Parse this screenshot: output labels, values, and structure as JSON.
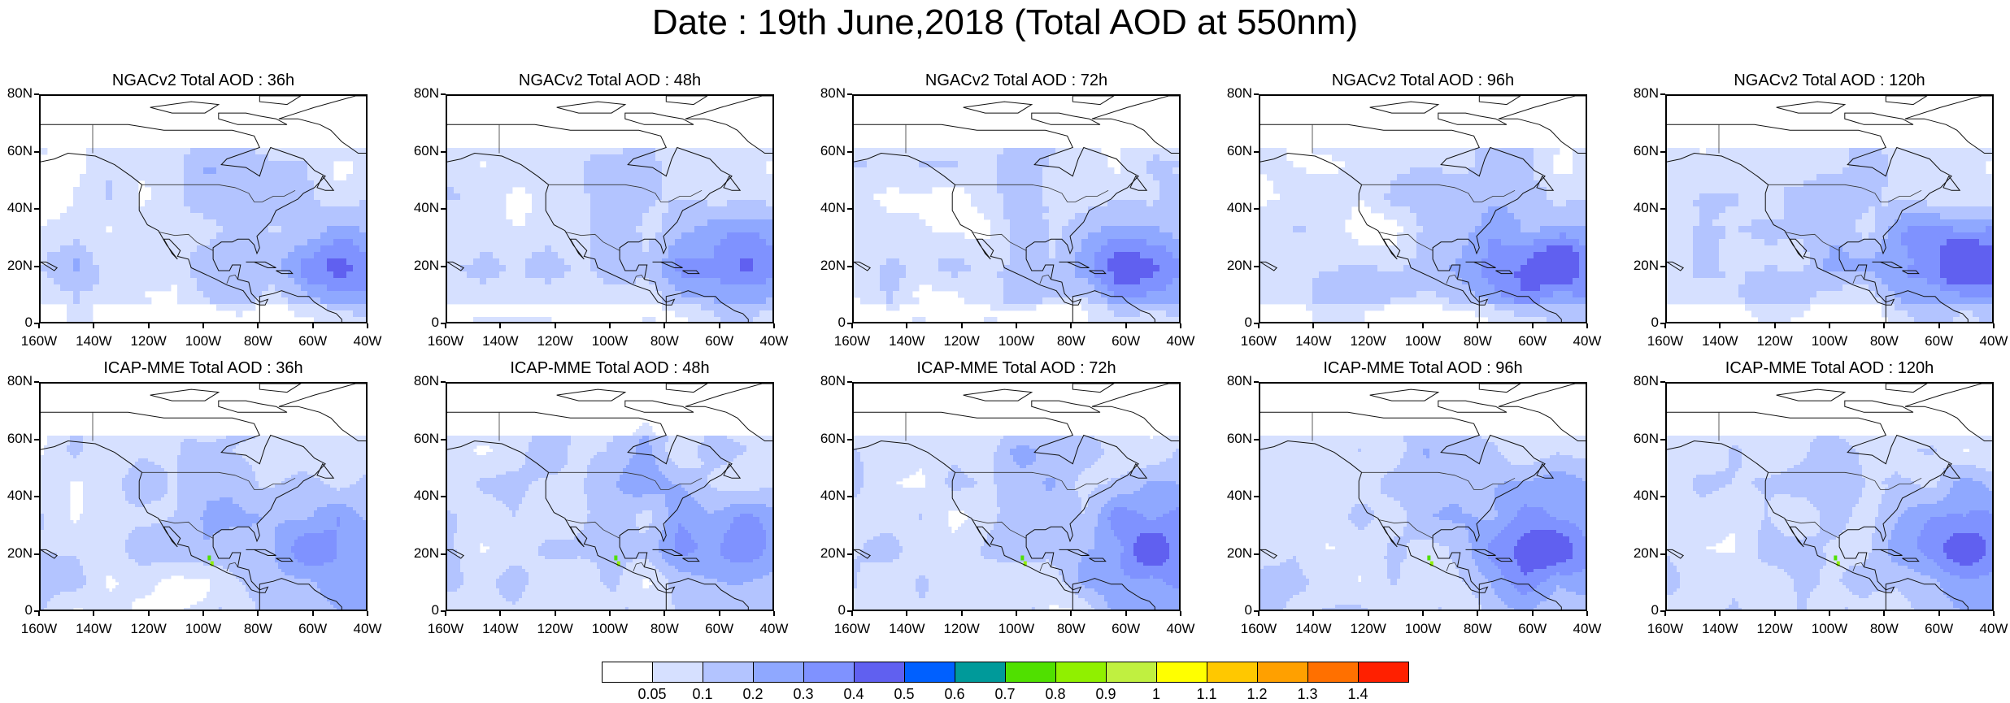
{
  "title": "Date : 19th June,2018 (Total AOD at 550nm)",
  "rows": [
    {
      "model": "NGACv2",
      "panels": [
        {
          "title": "NGACv2 Total AOD : 36h",
          "lead": "36h"
        },
        {
          "title": "NGACv2 Total AOD : 48h",
          "lead": "48h"
        },
        {
          "title": "NGACv2 Total AOD : 72h",
          "lead": "72h"
        },
        {
          "title": "NGACv2 Total AOD : 96h",
          "lead": "96h"
        },
        {
          "title": "NGACv2 Total AOD : 120h",
          "lead": "120h"
        }
      ]
    },
    {
      "model": "ICAP-MME",
      "panels": [
        {
          "title": "ICAP-MME Total AOD : 36h",
          "lead": "36h"
        },
        {
          "title": "ICAP-MME Total AOD : 48h",
          "lead": "48h"
        },
        {
          "title": "ICAP-MME Total AOD : 72h",
          "lead": "72h"
        },
        {
          "title": "ICAP-MME Total AOD : 96h",
          "lead": "96h"
        },
        {
          "title": "ICAP-MME Total AOD : 120h",
          "lead": "120h"
        }
      ]
    }
  ],
  "map_extent": {
    "lon": [
      -160,
      -40
    ],
    "lat": [
      0,
      80
    ]
  },
  "x_ticks": [
    "160W",
    "140W",
    "120W",
    "100W",
    "80W",
    "60W",
    "40W"
  ],
  "y_ticks": [
    "0",
    "20N",
    "40N",
    "60N",
    "80N"
  ],
  "colorbar": {
    "labels": [
      "0.05",
      "0.1",
      "0.2",
      "0.3",
      "0.4",
      "0.5",
      "0.6",
      "0.7",
      "0.8",
      "0.9",
      "1",
      "1.1",
      "1.2",
      "1.3",
      "1.4"
    ],
    "colors": [
      "#ffffff",
      "#d6e0ff",
      "#b3c4ff",
      "#8fa8ff",
      "#7f92ff",
      "#6060f0",
      "#0060ff",
      "#009a9a",
      "#50e000",
      "#90f000",
      "#c0f040",
      "#ffff00",
      "#ffc800",
      "#ffa000",
      "#ff7000",
      "#ff2000"
    ]
  }
}
